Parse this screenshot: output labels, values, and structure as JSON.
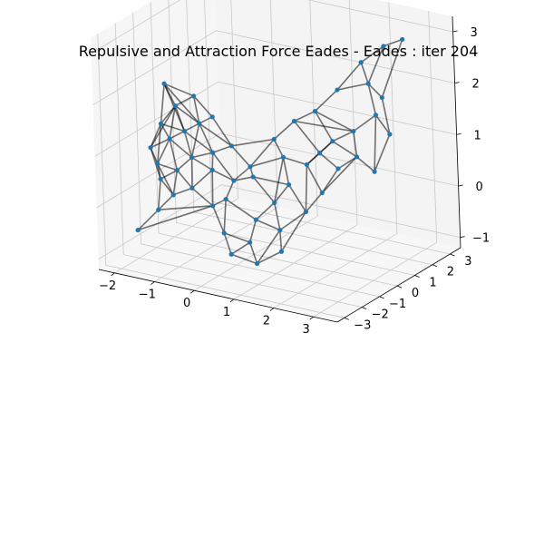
{
  "title": "Repulsive and Attraction Force Eades - Eades : iter 204",
  "chart_data": {
    "type": "network-3d",
    "title": "Repulsive and Attraction Force Eades - Eades : iter 204",
    "x_ticks": [
      "−2",
      "−1",
      "0",
      "1",
      "2",
      "3"
    ],
    "y_ticks": [
      "−3",
      "−2",
      "−1",
      "0",
      "1",
      "2",
      "3"
    ],
    "z_ticks": [
      "−1",
      "0",
      "1",
      "2",
      "3"
    ],
    "xlim": [
      -2.4,
      3.6
    ],
    "ylim": [
      -3.4,
      3.6
    ],
    "zlim": [
      -1.2,
      3.3
    ],
    "grid": true,
    "node_color": "#1f77b4",
    "edge_color": "#000000",
    "nodes": [
      {
        "x": -1.9,
        "y": -0.5,
        "z": 1.9
      },
      {
        "x": -1.5,
        "y": -0.8,
        "z": 1.6
      },
      {
        "x": -1.7,
        "y": -1.2,
        "z": 1.3
      },
      {
        "x": -1.4,
        "y": -1.4,
        "z": 1.1
      },
      {
        "x": -1.2,
        "y": -1.0,
        "z": 1.2
      },
      {
        "x": -1.0,
        "y": -0.6,
        "z": 1.3
      },
      {
        "x": -1.8,
        "y": -1.6,
        "z": 0.9
      },
      {
        "x": -1.5,
        "y": -1.9,
        "z": 0.7
      },
      {
        "x": -1.1,
        "y": -1.7,
        "z": 0.6
      },
      {
        "x": -0.9,
        "y": -1.3,
        "z": 0.8
      },
      {
        "x": -1.3,
        "y": -2.2,
        "z": 0.5
      },
      {
        "x": -0.9,
        "y": -2.4,
        "z": 0.3
      },
      {
        "x": -1.2,
        "y": -2.6,
        "z": 0.0
      },
      {
        "x": -1.6,
        "y": -2.9,
        "z": -0.4
      },
      {
        "x": -0.6,
        "y": -2.0,
        "z": 0.4
      },
      {
        "x": -0.5,
        "y": -1.0,
        "z": 0.9
      },
      {
        "x": -0.2,
        "y": -0.6,
        "z": 1.0
      },
      {
        "x": -0.3,
        "y": -1.5,
        "z": 0.7
      },
      {
        "x": 0.1,
        "y": -1.2,
        "z": 0.5
      },
      {
        "x": 0.3,
        "y": -0.7,
        "z": 0.7
      },
      {
        "x": 0.0,
        "y": -2.2,
        "z": 0.2
      },
      {
        "x": 0.4,
        "y": -2.5,
        "z": -0.2
      },
      {
        "x": 0.7,
        "y": -2.8,
        "z": -0.5
      },
      {
        "x": 1.0,
        "y": -2.4,
        "z": -0.3
      },
      {
        "x": 1.3,
        "y": -2.7,
        "z": -0.6
      },
      {
        "x": 0.9,
        "y": -1.8,
        "z": 0.0
      },
      {
        "x": 1.2,
        "y": -1.4,
        "z": 0.3
      },
      {
        "x": 1.5,
        "y": -1.8,
        "z": -0.1
      },
      {
        "x": 1.7,
        "y": -2.2,
        "z": -0.4
      },
      {
        "x": 1.9,
        "y": -1.2,
        "z": 0.2
      },
      {
        "x": 2.1,
        "y": -0.7,
        "z": 0.5
      },
      {
        "x": 1.6,
        "y": -0.4,
        "z": 0.9
      },
      {
        "x": 1.1,
        "y": -0.6,
        "z": 1.0
      },
      {
        "x": 0.7,
        "y": -0.2,
        "z": 1.2
      },
      {
        "x": 1.0,
        "y": 0.3,
        "z": 1.5
      },
      {
        "x": 1.4,
        "y": 0.6,
        "z": 1.7
      },
      {
        "x": 1.8,
        "y": 1.0,
        "z": 2.1
      },
      {
        "x": 2.2,
        "y": 1.5,
        "z": 2.6
      },
      {
        "x": 2.6,
        "y": 1.9,
        "z": 2.9
      },
      {
        "x": 2.9,
        "y": 2.3,
        "z": 3.0
      },
      {
        "x": 2.5,
        "y": 1.2,
        "z": 2.3
      },
      {
        "x": 2.8,
        "y": 0.9,
        "z": 1.8
      },
      {
        "x": 2.4,
        "y": 0.5,
        "z": 1.5
      },
      {
        "x": 2.0,
        "y": 0.2,
        "z": 1.3
      },
      {
        "x": 2.6,
        "y": 0.2,
        "z": 1.1
      },
      {
        "x": 2.9,
        "y": 0.5,
        "z": 0.8
      },
      {
        "x": 2.3,
        "y": -0.2,
        "z": 0.9
      },
      {
        "x": 1.8,
        "y": -0.1,
        "z": 1.1
      },
      {
        "x": 2.7,
        "y": 1.5,
        "z": 2.0
      },
      {
        "x": 3.0,
        "y": 1.2,
        "z": 1.4
      },
      {
        "x": 0.5,
        "y": -1.0,
        "z": 0.6
      },
      {
        "x": -0.8,
        "y": -0.3,
        "z": 1.4
      },
      {
        "x": -1.3,
        "y": -0.2,
        "z": 1.7
      },
      {
        "x": 0.2,
        "y": -1.9,
        "z": 0.3
      },
      {
        "x": 1.4,
        "y": -1.0,
        "z": 0.6
      }
    ],
    "edges": [
      [
        0,
        1
      ],
      [
        0,
        2
      ],
      [
        0,
        5
      ],
      [
        0,
        52
      ],
      [
        1,
        2
      ],
      [
        1,
        3
      ],
      [
        1,
        4
      ],
      [
        1,
        5
      ],
      [
        1,
        52
      ],
      [
        2,
        3
      ],
      [
        2,
        6
      ],
      [
        2,
        7
      ],
      [
        3,
        4
      ],
      [
        3,
        6
      ],
      [
        3,
        8
      ],
      [
        3,
        9
      ],
      [
        4,
        5
      ],
      [
        4,
        9
      ],
      [
        4,
        15
      ],
      [
        5,
        15
      ],
      [
        5,
        16
      ],
      [
        5,
        51
      ],
      [
        6,
        7
      ],
      [
        6,
        10
      ],
      [
        7,
        8
      ],
      [
        7,
        10
      ],
      [
        7,
        11
      ],
      [
        8,
        9
      ],
      [
        8,
        11
      ],
      [
        8,
        14
      ],
      [
        9,
        15
      ],
      [
        9,
        17
      ],
      [
        10,
        11
      ],
      [
        10,
        12
      ],
      [
        11,
        12
      ],
      [
        11,
        14
      ],
      [
        12,
        13
      ],
      [
        13,
        20
      ],
      [
        14,
        17
      ],
      [
        14,
        20
      ],
      [
        15,
        16
      ],
      [
        15,
        17
      ],
      [
        16,
        19
      ],
      [
        16,
        51
      ],
      [
        17,
        18
      ],
      [
        17,
        20
      ],
      [
        18,
        19
      ],
      [
        18,
        50
      ],
      [
        18,
        53
      ],
      [
        19,
        33
      ],
      [
        19,
        50
      ],
      [
        20,
        21
      ],
      [
        20,
        53
      ],
      [
        21,
        22
      ],
      [
        21,
        23
      ],
      [
        22,
        23
      ],
      [
        22,
        24
      ],
      [
        23,
        24
      ],
      [
        23,
        25
      ],
      [
        24,
        28
      ],
      [
        25,
        26
      ],
      [
        25,
        27
      ],
      [
        25,
        53
      ],
      [
        26,
        27
      ],
      [
        26,
        54
      ],
      [
        26,
        50
      ],
      [
        27,
        28
      ],
      [
        27,
        29
      ],
      [
        28,
        29
      ],
      [
        29,
        30
      ],
      [
        29,
        54
      ],
      [
        30,
        31
      ],
      [
        30,
        46
      ],
      [
        31,
        32
      ],
      [
        31,
        47
      ],
      [
        32,
        33
      ],
      [
        32,
        54
      ],
      [
        33,
        34
      ],
      [
        34,
        35
      ],
      [
        34,
        47
      ],
      [
        35,
        36
      ],
      [
        35,
        43
      ],
      [
        36,
        37
      ],
      [
        36,
        40
      ],
      [
        37,
        38
      ],
      [
        37,
        40
      ],
      [
        38,
        39
      ],
      [
        38,
        40
      ],
      [
        39,
        48
      ],
      [
        40,
        41
      ],
      [
        40,
        48
      ],
      [
        41,
        42
      ],
      [
        41,
        49
      ],
      [
        42,
        43
      ],
      [
        42,
        44
      ],
      [
        43,
        44
      ],
      [
        43,
        47
      ],
      [
        44,
        45
      ],
      [
        44,
        46
      ],
      [
        45,
        49
      ],
      [
        46,
        47
      ],
      [
        48,
        49
      ],
      [
        50,
        54
      ],
      [
        51,
        52
      ],
      [
        53,
        21
      ],
      [
        0,
        4
      ],
      [
        2,
        4
      ],
      [
        5,
        9
      ],
      [
        9,
        14
      ],
      [
        15,
        18
      ],
      [
        16,
        33
      ],
      [
        19,
        32
      ],
      [
        26,
        32
      ],
      [
        29,
        31
      ],
      [
        30,
        44
      ],
      [
        31,
        43
      ],
      [
        34,
        42
      ],
      [
        41,
        45
      ],
      [
        12,
        20
      ],
      [
        24,
        27
      ],
      [
        35,
        42
      ],
      [
        3,
        7
      ],
      [
        8,
        10
      ],
      [
        1,
        6
      ],
      [
        52,
        5
      ]
    ]
  }
}
